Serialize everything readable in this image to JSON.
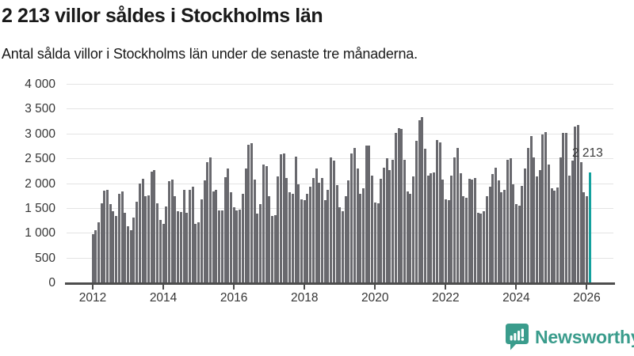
{
  "header": {
    "title": "2 213 villor såldes i Stockholms län",
    "subtitle": "Antal sålda villor i Stockholms län under de senaste tre månaderna."
  },
  "annotation": {
    "last_value_label": "2 213"
  },
  "footer": {
    "brand": "Newsworthy",
    "logo_icon": "newsworthy-speech-bubble-bar-chart-icon"
  },
  "colors": {
    "bar": "#69696e",
    "highlight": "#14a19e",
    "brand": "#3a9c8c",
    "grid": "#e4e4e4",
    "axis": "#4d4d4d",
    "title_text": "#1a1a1a",
    "tick_text": "#363636"
  },
  "chart_data": {
    "type": "bar",
    "title": "2 213 villor såldes i Stockholms län",
    "subtitle": "Antal sålda villor i Stockholms län under de senaste tre månaderna.",
    "frequency": "monthly",
    "start_month": "2012-01",
    "end_month": "2026-02",
    "values": [
      970,
      1060,
      1205,
      1590,
      1845,
      1865,
      1580,
      1440,
      1340,
      1780,
      1840,
      1405,
      1125,
      1055,
      1310,
      1630,
      2000,
      2080,
      1735,
      1760,
      2225,
      2265,
      1600,
      1255,
      1175,
      1530,
      2040,
      2070,
      1735,
      1440,
      1415,
      1860,
      1400,
      1865,
      1935,
      1175,
      1210,
      1680,
      2050,
      2430,
      2515,
      1840,
      1865,
      1445,
      1445,
      2115,
      2290,
      1810,
      1520,
      1445,
      1465,
      1785,
      2290,
      2775,
      2805,
      2075,
      1385,
      1580,
      2370,
      2340,
      1730,
      1335,
      1360,
      2130,
      2580,
      2605,
      2105,
      1810,
      1785,
      2530,
      1970,
      1680,
      1660,
      1785,
      1935,
      2105,
      2290,
      2005,
      2105,
      1650,
      1865,
      2525,
      2460,
      1955,
      1520,
      1440,
      1740,
      2050,
      2590,
      2715,
      2290,
      1785,
      1890,
      2765,
      2765,
      2155,
      1615,
      1600,
      2085,
      2315,
      2500,
      2260,
      2475,
      3005,
      3110,
      3085,
      2475,
      1835,
      1785,
      2130,
      2845,
      3270,
      3325,
      2695,
      2155,
      2195,
      2210,
      2875,
      2820,
      2075,
      1680,
      1665,
      2155,
      2525,
      2715,
      2200,
      1730,
      1705,
      2090,
      2075,
      2105,
      1410,
      1385,
      1440,
      1730,
      1935,
      2180,
      2315,
      2050,
      1810,
      1865,
      2475,
      2500,
      1970,
      1580,
      1545,
      1945,
      2290,
      2715,
      2950,
      2525,
      2130,
      2260,
      2980,
      3030,
      2370,
      1890,
      1850,
      1915,
      2525,
      3015,
      3015,
      2155,
      2450,
      3140,
      3175,
      2420,
      1810,
      1730,
      2213
    ],
    "highlight_last": true,
    "highlight_value": 2213,
    "highlight_label": "2 213",
    "x_tick_labels": [
      "2012",
      "2014",
      "2016",
      "2018",
      "2020",
      "2022",
      "2024",
      "2026"
    ],
    "y_ticks": [
      0,
      500,
      1000,
      1500,
      2000,
      2500,
      3000,
      3500,
      4000
    ],
    "y_tick_labels": [
      "0",
      "500",
      "1 000",
      "1 500",
      "2 000",
      "2 500",
      "3 000",
      "3 500",
      "4 000"
    ],
    "ylim": [
      0,
      4000
    ],
    "grid": true,
    "legend": false
  }
}
